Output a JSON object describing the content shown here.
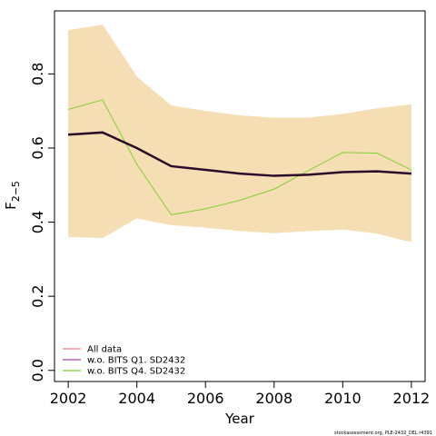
{
  "chart_data": {
    "type": "line",
    "xlabel": "Year",
    "ylabel": "F",
    "ylabel_bar": "‾",
    "ylabel_sub": "2−5",
    "xlim": [
      2001.6,
      2012.4
    ],
    "ylim": [
      -0.03,
      0.97
    ],
    "xticks": [
      2002,
      2004,
      2006,
      2008,
      2010,
      2012
    ],
    "yticks": [
      0.0,
      0.2,
      0.4,
      0.6,
      0.8
    ],
    "ytick_labels": [
      "0.0",
      "0.2",
      "0.4",
      "0.6",
      "0.8"
    ],
    "legend_position": "bottom-left",
    "band": {
      "color": "#f5deb3",
      "x": [
        2002,
        2003,
        2004,
        2005,
        2006,
        2007,
        2008,
        2009,
        2010,
        2011,
        2012
      ],
      "upper": [
        0.918,
        0.933,
        0.793,
        0.715,
        0.7,
        0.688,
        0.682,
        0.682,
        0.692,
        0.707,
        0.718
      ],
      "lower": [
        0.36,
        0.357,
        0.41,
        0.392,
        0.385,
        0.376,
        0.37,
        0.376,
        0.38,
        0.369,
        0.346
      ]
    },
    "x": [
      2002,
      2003,
      2004,
      2005,
      2006,
      2007,
      2008,
      2009,
      2010,
      2011,
      2012
    ],
    "series": [
      {
        "name": "All data",
        "color": "#ff7f7f",
        "values": [
          0.636,
          0.642,
          0.6,
          0.551,
          0.541,
          0.531,
          0.525,
          0.528,
          0.535,
          0.537,
          0.531
        ]
      },
      {
        "name": "w.o. BITS Q1. SD2432",
        "color": "#aa44aa",
        "values": [
          0.636,
          0.642,
          0.6,
          0.551,
          0.541,
          0.531,
          0.525,
          0.528,
          0.535,
          0.537,
          0.531
        ]
      },
      {
        "name": "w.o. BITS Q4. SD2432",
        "color": "#7fd32f",
        "values": [
          0.704,
          0.73,
          0.556,
          0.42,
          0.436,
          0.459,
          0.489,
          0.539,
          0.588,
          0.586,
          0.541
        ]
      }
    ],
    "dark_line": {
      "color": "#2a0a2a",
      "values": [
        0.636,
        0.642,
        0.6,
        0.551,
        0.541,
        0.531,
        0.525,
        0.528,
        0.535,
        0.537,
        0.531
      ]
    }
  },
  "footer": "stockassessment.org, PLE-2432_DEL r4391"
}
